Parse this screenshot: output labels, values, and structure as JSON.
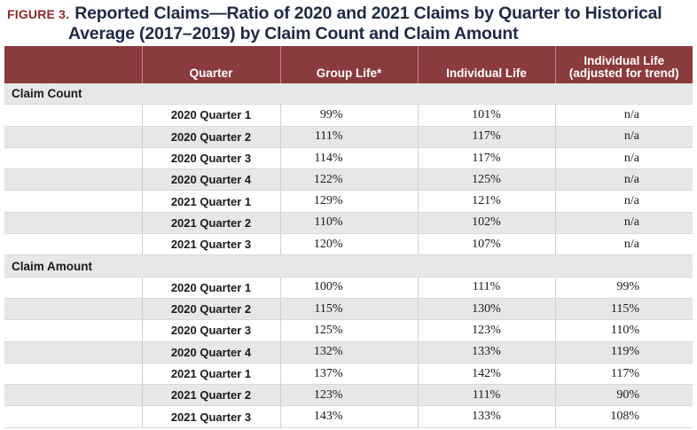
{
  "figure": {
    "label": "FIGURE 3.",
    "title_line1": "Reported Claims—Ratio of 2020 and 2021 Claims by Quarter to Historical",
    "title_line2": "Average (2017–2019) by Claim Count and Claim Amount"
  },
  "table": {
    "headers": {
      "blank": "",
      "quarter": "Quarter",
      "group_life": "Group Life*",
      "individual_life": "Individual Life",
      "adjusted_line1": "Individual Life",
      "adjusted_line2": "(adjusted for trend)"
    },
    "sections": [
      {
        "label": "Claim Count",
        "rows": [
          {
            "quarter": "2020 Quarter 1",
            "group": "99%",
            "individual": "101%",
            "adjusted": "n/a"
          },
          {
            "quarter": "2020 Quarter 2",
            "group": "111%",
            "individual": "117%",
            "adjusted": "n/a"
          },
          {
            "quarter": "2020 Quarter 3",
            "group": "114%",
            "individual": "117%",
            "adjusted": "n/a"
          },
          {
            "quarter": "2020 Quarter 4",
            "group": "122%",
            "individual": "125%",
            "adjusted": "n/a"
          },
          {
            "quarter": "2021 Quarter 1",
            "group": "129%",
            "individual": "121%",
            "adjusted": "n/a"
          },
          {
            "quarter": "2021 Quarter 2",
            "group": "110%",
            "individual": "102%",
            "adjusted": "n/a"
          },
          {
            "quarter": "2021 Quarter 3",
            "group": "120%",
            "individual": "107%",
            "adjusted": "n/a"
          }
        ]
      },
      {
        "label": "Claim Amount",
        "rows": [
          {
            "quarter": "2020 Quarter 1",
            "group": "100%",
            "individual": "111%",
            "adjusted": "99%"
          },
          {
            "quarter": "2020 Quarter 2",
            "group": "115%",
            "individual": "130%",
            "adjusted": "115%"
          },
          {
            "quarter": "2020 Quarter 3",
            "group": "125%",
            "individual": "123%",
            "adjusted": "110%"
          },
          {
            "quarter": "2020 Quarter 4",
            "group": "132%",
            "individual": "133%",
            "adjusted": "119%"
          },
          {
            "quarter": "2021 Quarter 1",
            "group": "137%",
            "individual": "142%",
            "adjusted": "117%"
          },
          {
            "quarter": "2021 Quarter 2",
            "group": "123%",
            "individual": "111%",
            "adjusted": "90%"
          },
          {
            "quarter": "2021 Quarter 3",
            "group": "143%",
            "individual": "133%",
            "adjusted": "108%"
          }
        ]
      }
    ]
  }
}
